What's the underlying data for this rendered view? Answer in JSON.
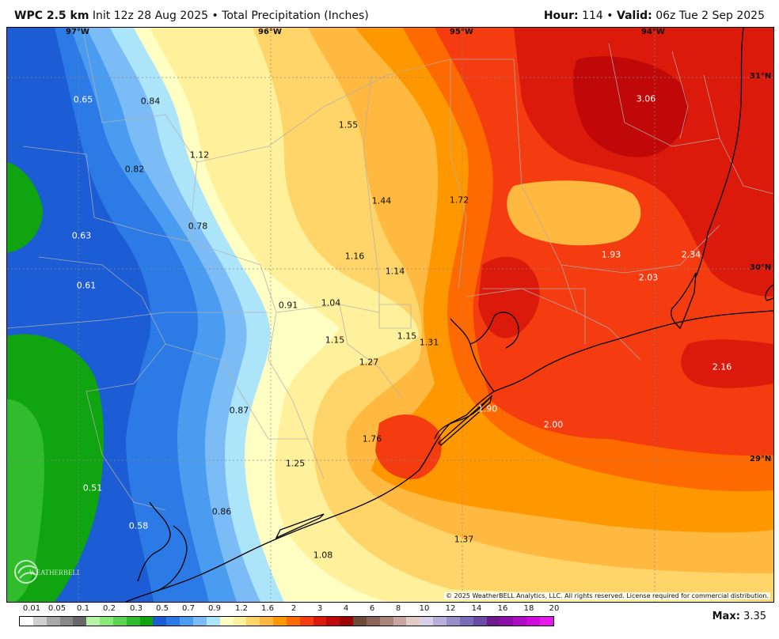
{
  "header": {
    "model": "WPC 2.5 km",
    "init": "Init 12z 28 Aug 2025",
    "separator": "•",
    "product": "Total Precipitation (Inches)",
    "hour_label": "Hour:",
    "hour_value": "114",
    "valid_label": "Valid:",
    "valid_value": "06z Tue 2 Sep 2025"
  },
  "map": {
    "longitude_labels": [
      "97°W",
      "96°W",
      "95°W",
      "94°W"
    ],
    "latitude_labels": [
      "31°N",
      "30°N",
      "29°N"
    ],
    "values": [
      {
        "text": "0.65",
        "tone": "light"
      },
      {
        "text": "0.84",
        "tone": "dark"
      },
      {
        "text": "1.55",
        "tone": "dark"
      },
      {
        "text": "3.06",
        "tone": "light"
      },
      {
        "text": "1.12",
        "tone": "dark"
      },
      {
        "text": "0.82",
        "tone": "dark"
      },
      {
        "text": "1.44",
        "tone": "dark"
      },
      {
        "text": "1.72",
        "tone": "dark"
      },
      {
        "text": "0.78",
        "tone": "dark"
      },
      {
        "text": "0.63",
        "tone": "light"
      },
      {
        "text": "1.16",
        "tone": "dark"
      },
      {
        "text": "1.93",
        "tone": "light"
      },
      {
        "text": "2.34",
        "tone": "light"
      },
      {
        "text": "1.14",
        "tone": "dark"
      },
      {
        "text": "2.03",
        "tone": "light"
      },
      {
        "text": "0.61",
        "tone": "light"
      },
      {
        "text": "0.91",
        "tone": "dark"
      },
      {
        "text": "1.04",
        "tone": "dark"
      },
      {
        "text": "1.15",
        "tone": "dark"
      },
      {
        "text": "1.31",
        "tone": "dark"
      },
      {
        "text": "1.15",
        "tone": "dark"
      },
      {
        "text": "1.27",
        "tone": "dark"
      },
      {
        "text": "2.16",
        "tone": "light"
      },
      {
        "text": "0.87",
        "tone": "dark"
      },
      {
        "text": "1.90",
        "tone": "light"
      },
      {
        "text": "2.00",
        "tone": "light"
      },
      {
        "text": "1.76",
        "tone": "dark"
      },
      {
        "text": "1.25",
        "tone": "dark"
      },
      {
        "text": "0.51",
        "tone": "light"
      },
      {
        "text": "0.86",
        "tone": "dark"
      },
      {
        "text": "0.58",
        "tone": "light"
      },
      {
        "text": "1.37",
        "tone": "dark"
      },
      {
        "text": "1.08",
        "tone": "dark"
      }
    ],
    "copyright": "© 2025 WeatherBELL Analytics, LLC. All rights reserved. License required for commercial distribution.",
    "logo_text": "WEATHERBELL"
  },
  "legend": {
    "ticks": [
      "0.01",
      "0.05",
      "0.1",
      "0.2",
      "0.3",
      "0.5",
      "0.7",
      "0.9",
      "1.2",
      "1.6",
      "2",
      "3",
      "4",
      "6",
      "8",
      "10",
      "12",
      "14",
      "16",
      "18",
      "20"
    ],
    "colors": [
      "#ffffff",
      "#d0d0d0",
      "#a8a8a8",
      "#888888",
      "#686868",
      "#b4f4a4",
      "#8ce87a",
      "#5ad451",
      "#30bc2c",
      "#10a410",
      "#1c5cd4",
      "#2c7ae6",
      "#4a9cf0",
      "#7cbcf6",
      "#ace4fa",
      "#ffffc4",
      "#fff09c",
      "#ffd468",
      "#ffb840",
      "#ff9800",
      "#ff6a00",
      "#f43c10",
      "#dc1a0c",
      "#c00808",
      "#9a0404",
      "#6e4a3a",
      "#8a6456",
      "#a8847a",
      "#c8a6a0",
      "#e4ccc6",
      "#d8d0e8",
      "#b8b0d8",
      "#988ec8",
      "#7a6cb6",
      "#6a4ca4",
      "#6c1a8c",
      "#8c0ea8",
      "#b00cc4",
      "#d00cdc",
      "#e41ae8"
    ],
    "max_label": "Max:",
    "max_value": "3.35"
  },
  "palette": {
    "green": "#10a410",
    "green_light": "#30bc2c",
    "blue_dark": "#1c5cd4",
    "blue": "#2c7ae6",
    "blue_mid": "#4a9cf0",
    "blue_light": "#7cbcf6",
    "cyan": "#ace4fa",
    "pale_yellow": "#ffffc4",
    "yellow": "#fff09c",
    "gold": "#ffd468",
    "orange_light": "#ffb840",
    "orange": "#ff9800",
    "orange_dark": "#ff6a00",
    "red_orange": "#f43c10",
    "red": "#dc1a0c",
    "dark_red": "#c00808"
  }
}
